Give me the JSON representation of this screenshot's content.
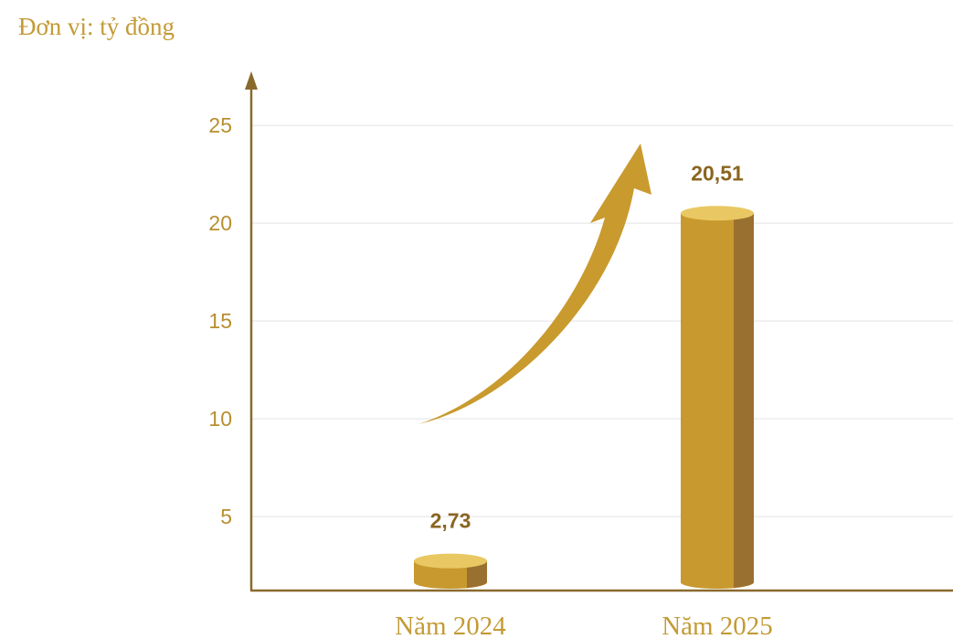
{
  "chart_data": {
    "type": "bar",
    "unit_label": "Đơn vị: tỷ đồng",
    "categories": [
      "Năm 2024",
      "Năm 2025"
    ],
    "values": [
      2.73,
      20.51
    ],
    "value_labels": [
      "2,73",
      "20,51"
    ],
    "yticks": [
      5,
      10,
      15,
      20,
      25
    ],
    "ylim": [
      1.5,
      28
    ],
    "grid": true,
    "legend": "none",
    "colors": {
      "bar_front": "#c8992e",
      "bar_side": "#9a7030",
      "bar_top": "#e9c863",
      "axis": "#8a6a2c",
      "grid": "#e3e3e3",
      "arrow": "#c99a2e"
    }
  }
}
